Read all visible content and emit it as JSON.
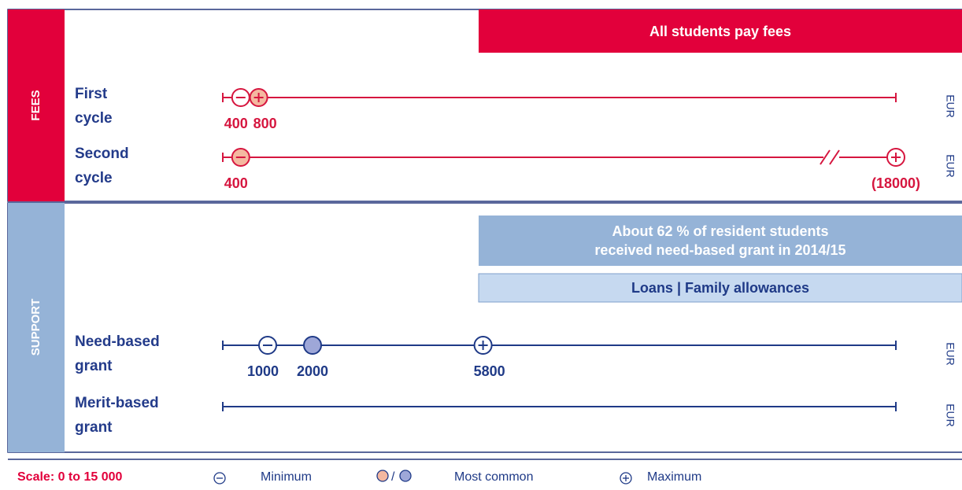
{
  "fees": {
    "title": "FEES",
    "banner": [
      "All students pay fees"
    ],
    "rows": [
      {
        "label": [
          "First",
          "cycle"
        ],
        "unit": "EUR",
        "min": 400,
        "max": 800,
        "most_common": 800
      },
      {
        "label": [
          "Second",
          "cycle"
        ],
        "unit": "EUR",
        "min": 400,
        "most_common": 400,
        "max": 18000,
        "max_label": "(18000)"
      }
    ]
  },
  "support": {
    "title": "SUPPORT",
    "banners": [
      [
        "About 62 % of resident students",
        "received need-based grant in 2014/15"
      ],
      [
        "Loans | Family allowances"
      ]
    ],
    "rows": [
      {
        "label": [
          "Need-based",
          "grant"
        ],
        "unit": "EUR",
        "min": 1000,
        "most_common": 2000,
        "max": 5800
      },
      {
        "label": [
          "Merit-based",
          "grant"
        ],
        "unit": "EUR"
      }
    ]
  },
  "scale": {
    "xlim": [
      0,
      15000
    ]
  },
  "legend": {
    "scale": "Scale: 0 to 15 000",
    "minimum": "Minimum",
    "separator": "/",
    "most_common": "Most common",
    "maximum": "Maximum"
  }
}
